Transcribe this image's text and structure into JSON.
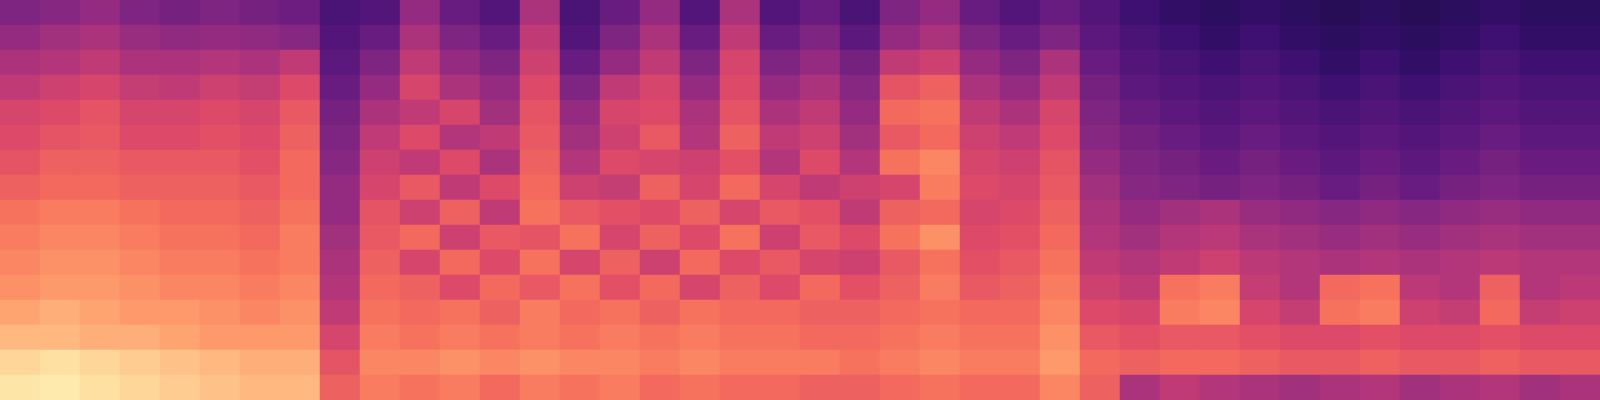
{
  "chart_data": {
    "type": "heatmap",
    "tick_labels": false,
    "zlim": [
      15,
      100
    ],
    "cells": [
      [
        40,
        42,
        45,
        40,
        38,
        40,
        38,
        36,
        28,
        30,
        45,
        35,
        30,
        50,
        28,
        35,
        45,
        30,
        50,
        30,
        35,
        28,
        40,
        45,
        35,
        30,
        35,
        30,
        25,
        22,
        20,
        22,
        20,
        18,
        20,
        18,
        20,
        22,
        20,
        20
      ],
      [
        45,
        48,
        50,
        46,
        44,
        45,
        44,
        42,
        30,
        35,
        50,
        40,
        35,
        55,
        30,
        40,
        50,
        35,
        55,
        35,
        40,
        32,
        45,
        50,
        40,
        35,
        40,
        32,
        28,
        25,
        22,
        25,
        22,
        20,
        22,
        20,
        22,
        25,
        22,
        22
      ],
      [
        50,
        52,
        55,
        50,
        50,
        52,
        50,
        55,
        32,
        40,
        55,
        45,
        40,
        58,
        35,
        45,
        55,
        40,
        60,
        40,
        45,
        38,
        55,
        58,
        45,
        40,
        50,
        35,
        30,
        28,
        25,
        28,
        25,
        22,
        25,
        22,
        25,
        28,
        25,
        25
      ],
      [
        55,
        58,
        60,
        56,
        55,
        58,
        56,
        62,
        35,
        45,
        60,
        50,
        45,
        62,
        40,
        55,
        60,
        45,
        62,
        45,
        50,
        42,
        65,
        68,
        50,
        45,
        55,
        38,
        32,
        30,
        28,
        30,
        28,
        25,
        28,
        25,
        28,
        30,
        28,
        28
      ],
      [
        60,
        62,
        65,
        60,
        60,
        62,
        60,
        66,
        38,
        50,
        55,
        60,
        48,
        65,
        45,
        60,
        62,
        50,
        65,
        50,
        55,
        45,
        70,
        72,
        55,
        50,
        60,
        40,
        35,
        32,
        30,
        32,
        30,
        28,
        30,
        28,
        30,
        32,
        30,
        30
      ],
      [
        62,
        65,
        66,
        62,
        62,
        64,
        62,
        68,
        40,
        55,
        62,
        52,
        55,
        66,
        48,
        58,
        66,
        52,
        68,
        55,
        58,
        48,
        66,
        70,
        58,
        55,
        62,
        42,
        38,
        35,
        32,
        35,
        32,
        30,
        32,
        30,
        32,
        35,
        32,
        32
      ],
      [
        65,
        68,
        68,
        66,
        66,
        66,
        64,
        70,
        42,
        58,
        55,
        62,
        50,
        68,
        52,
        62,
        60,
        58,
        64,
        52,
        62,
        52,
        72,
        76,
        60,
        58,
        65,
        45,
        40,
        38,
        35,
        38,
        35,
        32,
        35,
        32,
        35,
        38,
        35,
        35
      ],
      [
        68,
        70,
        70,
        68,
        68,
        68,
        66,
        70,
        45,
        60,
        66,
        55,
        62,
        70,
        58,
        56,
        68,
        60,
        70,
        60,
        55,
        58,
        60,
        74,
        62,
        60,
        66,
        48,
        42,
        40,
        38,
        40,
        38,
        35,
        38,
        35,
        38,
        40,
        38,
        38
      ],
      [
        72,
        74,
        74,
        72,
        70,
        70,
        68,
        72,
        45,
        65,
        58,
        68,
        55,
        72,
        66,
        64,
        62,
        68,
        60,
        66,
        64,
        55,
        68,
        70,
        60,
        62,
        68,
        50,
        45,
        48,
        50,
        46,
        44,
        42,
        44,
        42,
        44,
        46,
        44,
        44
      ],
      [
        74,
        76,
        76,
        74,
        72,
        72,
        70,
        74,
        48,
        66,
        70,
        58,
        66,
        65,
        72,
        60,
        68,
        62,
        72,
        58,
        66,
        62,
        72,
        78,
        62,
        64,
        70,
        52,
        48,
        52,
        54,
        50,
        48,
        46,
        48,
        46,
        48,
        50,
        48,
        48
      ],
      [
        76,
        78,
        78,
        76,
        74,
        74,
        72,
        74,
        50,
        68,
        60,
        70,
        62,
        72,
        60,
        68,
        58,
        70,
        62,
        66,
        60,
        58,
        66,
        72,
        64,
        66,
        72,
        55,
        52,
        55,
        58,
        54,
        52,
        50,
        52,
        50,
        52,
        54,
        52,
        52
      ],
      [
        78,
        80,
        80,
        78,
        76,
        76,
        74,
        76,
        52,
        70,
        68,
        62,
        70,
        66,
        72,
        64,
        70,
        60,
        68,
        62,
        70,
        64,
        68,
        74,
        66,
        68,
        74,
        58,
        55,
        72,
        74,
        56,
        52,
        70,
        72,
        54,
        52,
        68,
        52,
        54
      ],
      [
        82,
        84,
        82,
        80,
        80,
        78,
        76,
        78,
        55,
        72,
        70,
        72,
        68,
        74,
        70,
        72,
        68,
        72,
        70,
        70,
        68,
        68,
        70,
        72,
        70,
        70,
        76,
        62,
        60,
        74,
        76,
        60,
        56,
        72,
        74,
        58,
        56,
        70,
        56,
        58
      ],
      [
        86,
        86,
        84,
        84,
        82,
        80,
        80,
        80,
        60,
        74,
        72,
        74,
        72,
        74,
        72,
        74,
        72,
        74,
        72,
        72,
        70,
        70,
        72,
        74,
        72,
        72,
        78,
        66,
        64,
        66,
        66,
        64,
        62,
        62,
        64,
        62,
        62,
        64,
        62,
        62
      ],
      [
        92,
        94,
        92,
        90,
        88,
        86,
        84,
        84,
        65,
        76,
        76,
        78,
        76,
        78,
        76,
        76,
        74,
        76,
        74,
        74,
        74,
        72,
        74,
        76,
        74,
        74,
        80,
        70,
        68,
        70,
        70,
        68,
        66,
        66,
        68,
        66,
        66,
        68,
        66,
        66
      ],
      [
        95,
        96,
        94,
        92,
        90,
        88,
        86,
        86,
        68,
        74,
        72,
        74,
        70,
        74,
        72,
        74,
        70,
        72,
        70,
        70,
        68,
        68,
        70,
        72,
        70,
        70,
        76,
        68,
        50,
        55,
        52,
        50,
        48,
        50,
        52,
        48,
        50,
        52,
        48,
        50
      ]
    ]
  }
}
